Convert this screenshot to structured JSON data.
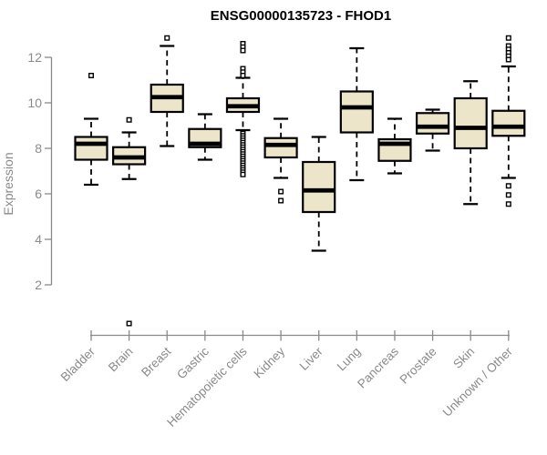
{
  "chart_data": {
    "type": "boxplot",
    "title": "ENSG00000135723 - FHOD1",
    "ylabel": "Expression",
    "xlabel": "",
    "yticks": [
      12,
      10,
      8,
      6,
      4,
      2
    ],
    "y_axis_range": [
      2,
      12
    ],
    "grid": false,
    "legend": false,
    "categories": [
      "Bladder",
      "Brain",
      "Breast",
      "Gastric",
      "Hematopoietic cells",
      "Kidney",
      "Liver",
      "Lung",
      "Pancreas",
      "Prostate",
      "Skin",
      "Unknown / Other"
    ],
    "boxes": [
      {
        "category": "Bladder",
        "whisker_low": 6.4,
        "q1": 7.5,
        "median": 8.2,
        "q3": 8.5,
        "whisker_high": 9.3,
        "outliers": [
          11.2
        ]
      },
      {
        "category": "Brain",
        "whisker_low": 6.65,
        "q1": 7.3,
        "median": 7.6,
        "q3": 8.05,
        "whisker_high": 8.7,
        "outliers": [
          9.25,
          0.3
        ]
      },
      {
        "category": "Breast",
        "whisker_low": 8.1,
        "q1": 9.6,
        "median": 10.25,
        "q3": 10.8,
        "whisker_high": 12.5,
        "outliers": [
          12.85
        ]
      },
      {
        "category": "Gastric",
        "whisker_low": 7.5,
        "q1": 8.05,
        "median": 8.2,
        "q3": 8.85,
        "whisker_high": 9.5,
        "outliers": []
      },
      {
        "category": "Hematopoietic cells",
        "whisker_low": 8.8,
        "q1": 9.6,
        "median": 9.85,
        "q3": 10.2,
        "whisker_high": 11.1,
        "outliers": [
          12.6,
          12.45,
          12.3,
          11.5,
          11.35,
          11.2,
          8.65,
          8.55,
          8.45,
          8.35,
          8.25,
          8.15,
          8.05,
          7.95,
          7.85,
          7.75,
          7.65,
          7.55,
          7.45,
          7.35,
          7.25,
          7.15,
          7.05,
          6.95,
          6.85
        ]
      },
      {
        "category": "Kidney",
        "whisker_low": 6.7,
        "q1": 7.6,
        "median": 8.15,
        "q3": 8.45,
        "whisker_high": 9.3,
        "outliers": [
          6.1,
          5.7
        ]
      },
      {
        "category": "Liver",
        "whisker_low": 3.5,
        "q1": 5.2,
        "median": 6.15,
        "q3": 7.4,
        "whisker_high": 8.5,
        "outliers": []
      },
      {
        "category": "Lung",
        "whisker_low": 6.6,
        "q1": 8.7,
        "median": 9.8,
        "q3": 10.5,
        "whisker_high": 12.4,
        "outliers": []
      },
      {
        "category": "Pancreas",
        "whisker_low": 6.9,
        "q1": 7.45,
        "median": 8.2,
        "q3": 8.4,
        "whisker_high": 9.3,
        "outliers": []
      },
      {
        "category": "Prostate",
        "whisker_low": 7.9,
        "q1": 8.65,
        "median": 8.95,
        "q3": 9.55,
        "whisker_high": 9.7,
        "outliers": []
      },
      {
        "category": "Skin",
        "whisker_low": 5.55,
        "q1": 8.0,
        "median": 8.9,
        "q3": 10.2,
        "whisker_high": 10.95,
        "outliers": []
      },
      {
        "category": "Unknown / Other",
        "whisker_low": 6.7,
        "q1": 8.55,
        "median": 8.95,
        "q3": 9.65,
        "whisker_high": 11.6,
        "outliers": [
          12.85,
          12.5,
          12.35,
          12.2,
          12.05,
          11.9,
          6.35,
          5.95,
          5.55
        ]
      }
    ],
    "colors": {
      "box_fill": "#ece5c9",
      "box_stroke": "#000000",
      "median": "#000000",
      "whisker": "#000000",
      "outlier_fill": "#ffffff",
      "axis": "#8a8a8a",
      "tick_label": "#8a8a8a",
      "title": "#000000",
      "background": "#ffffff"
    }
  }
}
